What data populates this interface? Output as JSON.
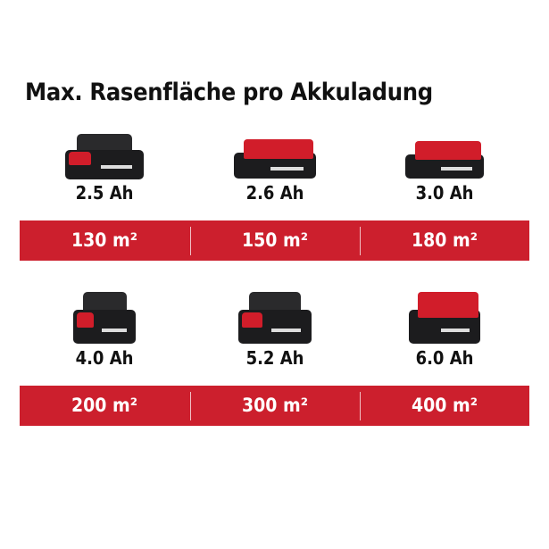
{
  "title": "Max. Rasenfläche pro Akkuladung",
  "colors": {
    "accent": "#cc1f2d",
    "battery_body": "#1c1c1e"
  },
  "rows": [
    {
      "items": [
        {
          "capacity": "2.5 Ah",
          "area": "130 m²",
          "icon": "battery-pack-icon"
        },
        {
          "capacity": "2.6 Ah",
          "area": "150 m²",
          "icon": "battery-pack-icon"
        },
        {
          "capacity": "3.0 Ah",
          "area": "180 m²",
          "icon": "battery-pack-icon"
        }
      ]
    },
    {
      "items": [
        {
          "capacity": "4.0 Ah",
          "area": "200 m²",
          "icon": "battery-pack-icon"
        },
        {
          "capacity": "5.2 Ah",
          "area": "300 m²",
          "icon": "battery-pack-icon"
        },
        {
          "capacity": "6.0 Ah",
          "area": "400 m²",
          "icon": "battery-pack-icon"
        }
      ]
    }
  ]
}
